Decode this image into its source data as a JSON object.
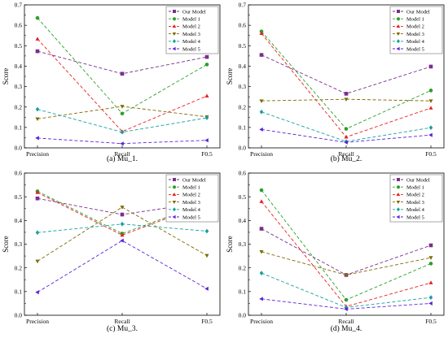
{
  "colors": {
    "our_model": "#7b2d8e",
    "model1": "#2ca02c",
    "model2": "#e8201f",
    "model3": "#7f6a00",
    "model4": "#16a0a0",
    "model5": "#5b22d6"
  },
  "chart_data": [
    {
      "type": "line",
      "caption": "(a) Mu_1.",
      "categories": [
        "Precision",
        "Recall",
        "F0.5"
      ],
      "ylabel": "Score",
      "ylim": [
        0,
        0.7
      ],
      "yticks": [
        "0.0",
        "0.1",
        "0.2",
        "0.3",
        "0.4",
        "0.5",
        "0.6",
        "0.7"
      ],
      "legend_position": "top-right",
      "series": [
        {
          "name": "Our Model",
          "values": [
            0.473,
            0.363,
            0.445
          ]
        },
        {
          "name": "Model 1",
          "values": [
            0.636,
            0.168,
            0.408
          ]
        },
        {
          "name": "Model 2",
          "values": [
            0.533,
            0.08,
            0.254
          ]
        },
        {
          "name": "Model 3",
          "values": [
            0.142,
            0.203,
            0.152
          ]
        },
        {
          "name": "Model 4",
          "values": [
            0.189,
            0.077,
            0.147
          ]
        },
        {
          "name": "Model 5",
          "values": [
            0.048,
            0.021,
            0.037
          ]
        }
      ]
    },
    {
      "type": "line",
      "caption": "(b) Mu_2.",
      "categories": [
        "Precision",
        "Recall",
        "F0.5"
      ],
      "ylabel": "Score",
      "ylim": [
        0,
        0.7
      ],
      "yticks": [
        "0.0",
        "0.1",
        "0.2",
        "0.3",
        "0.4",
        "0.5",
        "0.6",
        "0.7"
      ],
      "legend_position": "top-right",
      "series": [
        {
          "name": "Our Model",
          "values": [
            0.455,
            0.265,
            0.398
          ]
        },
        {
          "name": "Model 1",
          "values": [
            0.57,
            0.093,
            0.281
          ]
        },
        {
          "name": "Model 2",
          "values": [
            0.56,
            0.053,
            0.195
          ]
        },
        {
          "name": "Model 3",
          "values": [
            0.23,
            0.238,
            0.23
          ]
        },
        {
          "name": "Model 4",
          "values": [
            0.176,
            0.031,
            0.099
          ]
        },
        {
          "name": "Model 5",
          "values": [
            0.09,
            0.027,
            0.063
          ]
        }
      ]
    },
    {
      "type": "line",
      "caption": "(c) Mu_3.",
      "categories": [
        "Precision",
        "Recall",
        "F0.5"
      ],
      "ylabel": "Score",
      "ylim": [
        0,
        0.6
      ],
      "yticks": [
        "0.0",
        "0.1",
        "0.2",
        "0.3",
        "0.4",
        "0.5",
        "0.6"
      ],
      "legend_position": "top-right",
      "series": [
        {
          "name": "Our Model",
          "values": [
            0.493,
            0.425,
            0.478
          ]
        },
        {
          "name": "Model 1",
          "values": [
            0.523,
            0.345,
            0.476
          ]
        },
        {
          "name": "Model 2",
          "values": [
            0.518,
            0.338,
            0.472
          ]
        },
        {
          "name": "Model 3",
          "values": [
            0.228,
            0.456,
            0.252
          ]
        },
        {
          "name": "Model 4",
          "values": [
            0.349,
            0.385,
            0.355
          ]
        },
        {
          "name": "Model 5",
          "values": [
            0.097,
            0.315,
            0.112
          ]
        }
      ]
    },
    {
      "type": "line",
      "caption": "(d) Mu_4.",
      "categories": [
        "Precision",
        "Recall",
        "F0.5"
      ],
      "ylabel": "Score",
      "ylim": [
        0,
        0.6
      ],
      "yticks": [
        "0.0",
        "0.1",
        "0.2",
        "0.3",
        "0.4",
        "0.5",
        "0.6"
      ],
      "legend_position": "top-right",
      "series": [
        {
          "name": "Our Model",
          "values": [
            0.365,
            0.17,
            0.295
          ]
        },
        {
          "name": "Model 1",
          "values": [
            0.528,
            0.065,
            0.218
          ]
        },
        {
          "name": "Model 2",
          "values": [
            0.48,
            0.037,
            0.137
          ]
        },
        {
          "name": "Model 3",
          "values": [
            0.268,
            0.17,
            0.243
          ]
        },
        {
          "name": "Model 4",
          "values": [
            0.178,
            0.033,
            0.075
          ]
        },
        {
          "name": "Model 5",
          "values": [
            0.069,
            0.026,
            0.05
          ]
        }
      ]
    }
  ]
}
